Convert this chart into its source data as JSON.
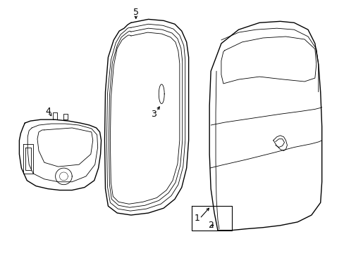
{
  "background_color": "#ffffff",
  "line_color": "#000000",
  "lw": 1.0,
  "tlw": 0.6
}
